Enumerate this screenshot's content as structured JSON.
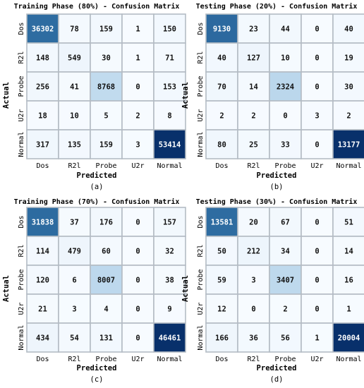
{
  "figure": {
    "panels": [
      {
        "title": "Training Phase (80%) - Confusion Matrix",
        "caption": "(a)",
        "xlabel": "Predicted",
        "ylabel": "Actual"
      },
      {
        "title": "Testing Phase (20%) - Confusion Matrix",
        "caption": "(b)",
        "xlabel": "Predicted",
        "ylabel": "Actual"
      },
      {
        "title": "Training Phase (70%) - Confusion Matrix",
        "caption": "(c)",
        "xlabel": "Predicted",
        "ylabel": "Actual"
      },
      {
        "title": "Testing Phase (30%) - Confusion Matrix",
        "caption": "(d)",
        "xlabel": "Predicted",
        "ylabel": "Actual"
      }
    ]
  },
  "chart_data": [
    {
      "type": "heatmap",
      "title": "Training Phase (80%) - Confusion Matrix",
      "xlabel": "Predicted",
      "ylabel": "Actual",
      "x_categories": [
        "Dos",
        "R2l",
        "Probe",
        "U2r",
        "Normal"
      ],
      "y_categories": [
        "Dos",
        "R2l",
        "Probe",
        "U2r",
        "Normal"
      ],
      "values": [
        [
          36302,
          78,
          159,
          1,
          150
        ],
        [
          148,
          549,
          30,
          1,
          71
        ],
        [
          256,
          41,
          8768,
          0,
          153
        ],
        [
          18,
          10,
          5,
          2,
          8
        ],
        [
          317,
          135,
          159,
          3,
          53414
        ]
      ],
      "colormap": [
        "#f7fbff",
        "#d0e3f3",
        "#4a98c9",
        "#08306b"
      ],
      "grid": true
    },
    {
      "type": "heatmap",
      "title": "Testing Phase (20%) - Confusion Matrix",
      "xlabel": "Predicted",
      "ylabel": "Actual",
      "x_categories": [
        "Dos",
        "R2l",
        "Probe",
        "U2r",
        "Normal"
      ],
      "y_categories": [
        "Dos",
        "R2l",
        "Probe",
        "U2r",
        "Normal"
      ],
      "values": [
        [
          9130,
          23,
          44,
          0,
          40
        ],
        [
          40,
          127,
          10,
          0,
          19
        ],
        [
          70,
          14,
          2324,
          0,
          30
        ],
        [
          2,
          2,
          0,
          3,
          2
        ],
        [
          80,
          25,
          33,
          0,
          13177
        ]
      ],
      "colormap": [
        "#f7fbff",
        "#d0e3f3",
        "#4a98c9",
        "#08306b"
      ],
      "grid": true
    },
    {
      "type": "heatmap",
      "title": "Training Phase (70%) - Confusion Matrix",
      "xlabel": "Predicted",
      "ylabel": "Actual",
      "x_categories": [
        "Dos",
        "R2l",
        "Probe",
        "U2r",
        "Normal"
      ],
      "y_categories": [
        "Dos",
        "R2l",
        "Probe",
        "U2r",
        "Normal"
      ],
      "values": [
        [
          31838,
          37,
          176,
          0,
          157
        ],
        [
          114,
          479,
          60,
          0,
          32
        ],
        [
          120,
          6,
          8007,
          0,
          38
        ],
        [
          21,
          3,
          4,
          0,
          9
        ],
        [
          434,
          54,
          131,
          0,
          46461
        ]
      ],
      "colormap": [
        "#f7fbff",
        "#d0e3f3",
        "#4a98c9",
        "#08306b"
      ],
      "grid": true
    },
    {
      "type": "heatmap",
      "title": "Testing Phase (30%) - Confusion Matrix",
      "xlabel": "Predicted",
      "ylabel": "Actual",
      "x_categories": [
        "Dos",
        "R2l",
        "Probe",
        "U2r",
        "Normal"
      ],
      "y_categories": [
        "Dos",
        "R2l",
        "Probe",
        "U2r",
        "Normal"
      ],
      "values": [
        [
          13581,
          20,
          67,
          0,
          51
        ],
        [
          50,
          212,
          34,
          0,
          14
        ],
        [
          59,
          3,
          3407,
          0,
          16
        ],
        [
          12,
          0,
          2,
          0,
          1
        ],
        [
          166,
          36,
          56,
          1,
          20004
        ]
      ],
      "colormap": [
        "#f7fbff",
        "#d0e3f3",
        "#4a98c9",
        "#08306b"
      ],
      "grid": true
    }
  ]
}
